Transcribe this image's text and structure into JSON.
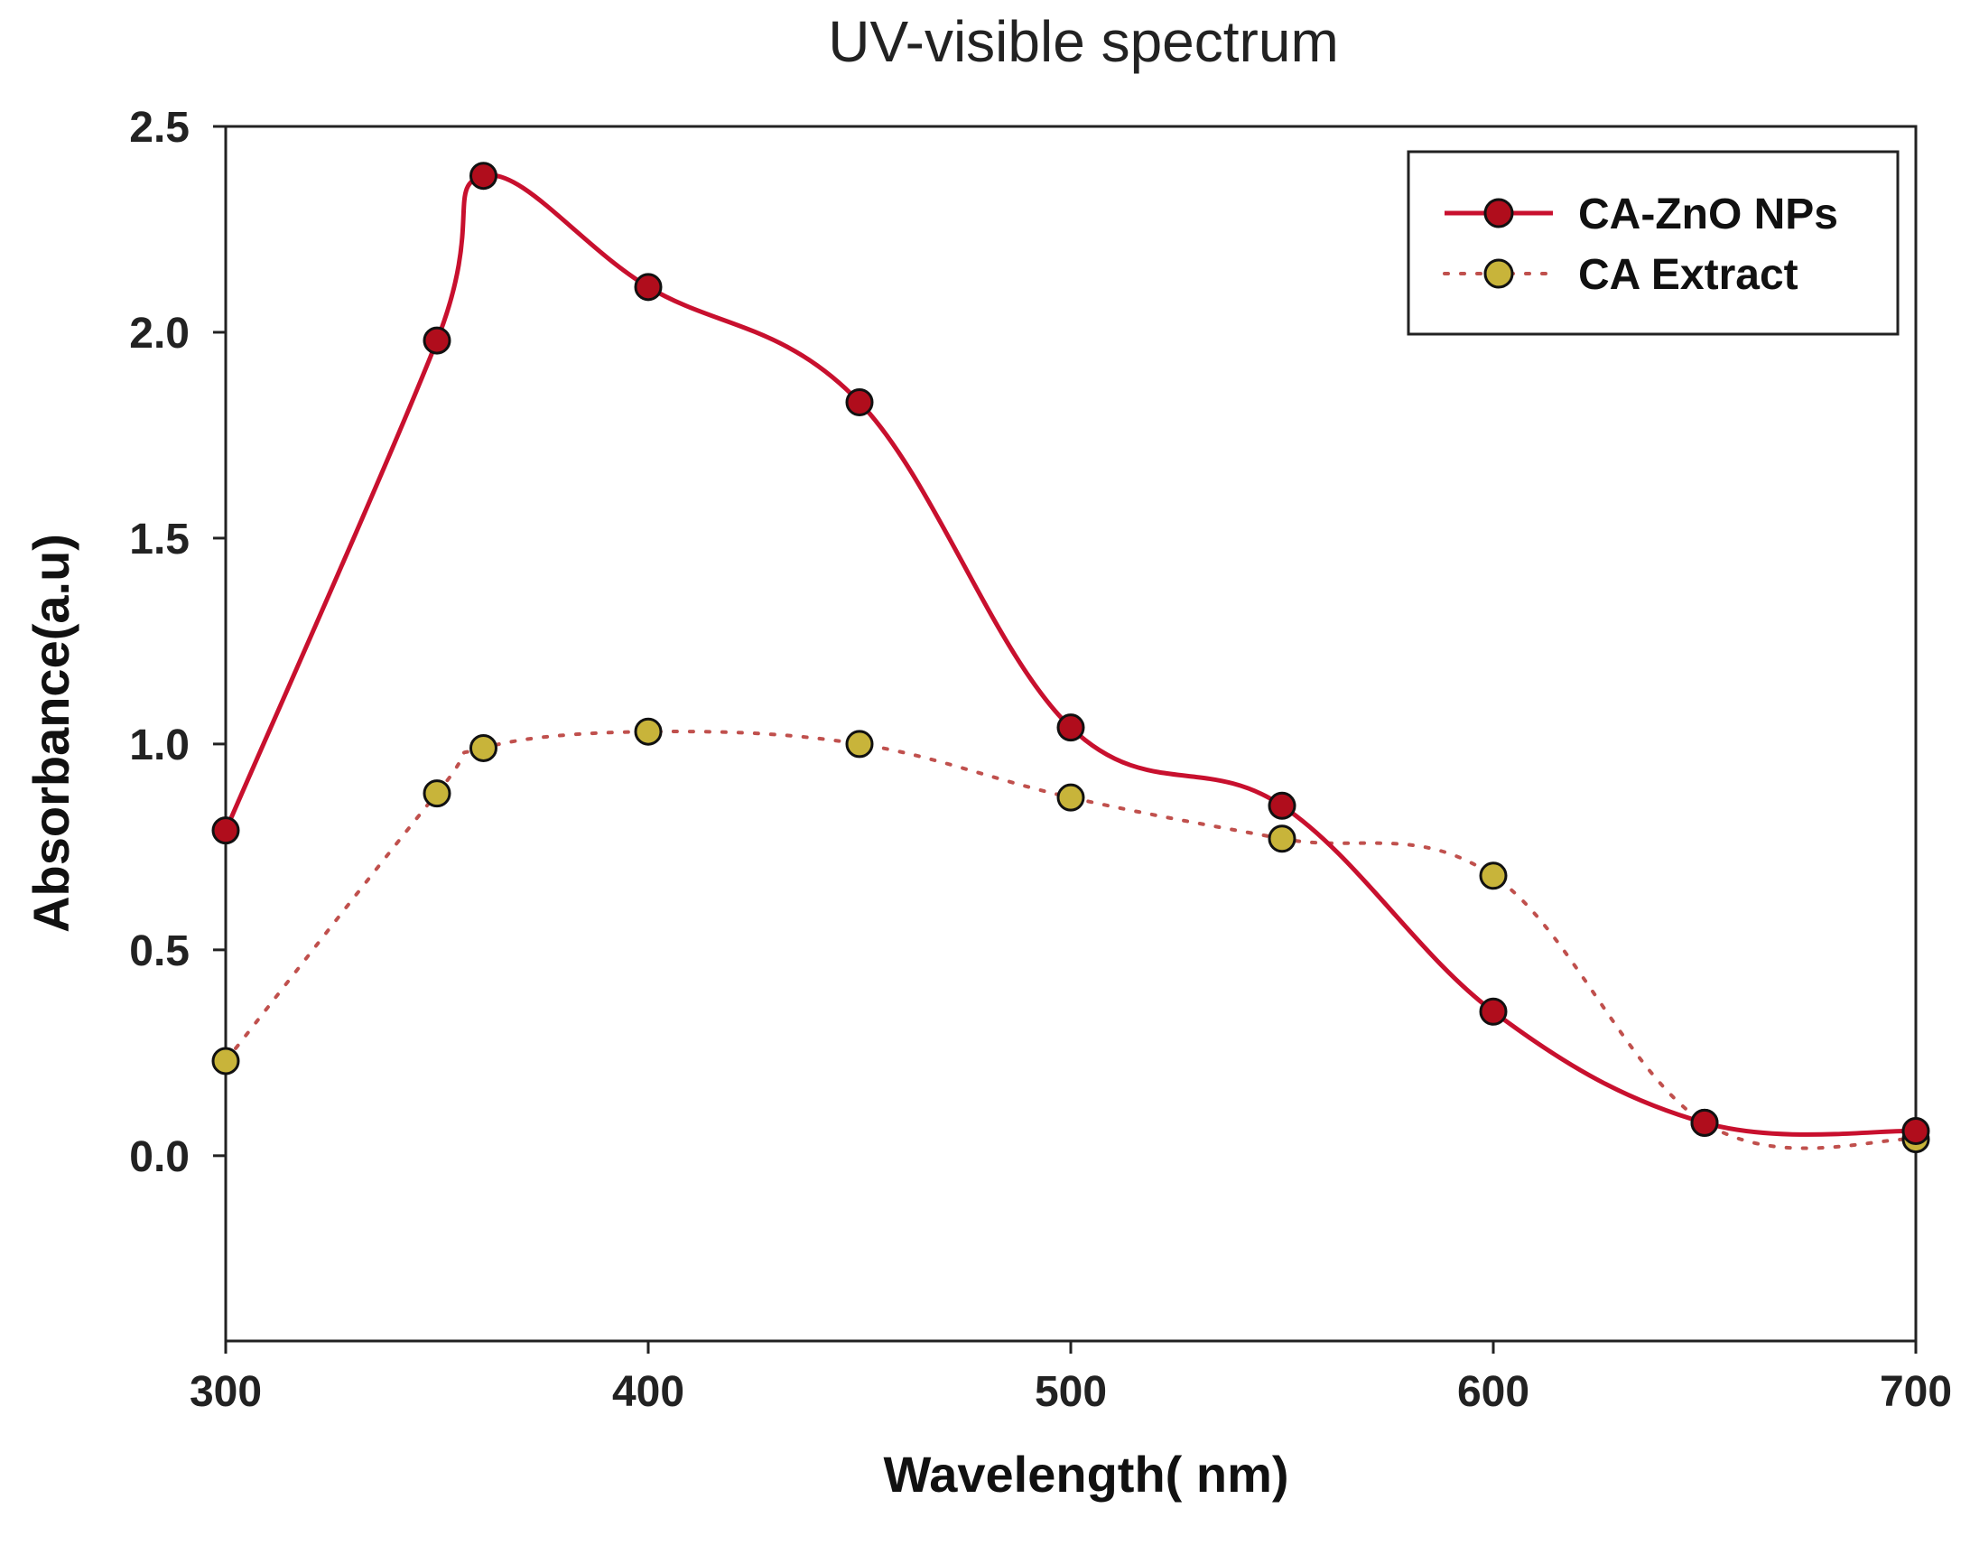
{
  "chart_data": {
    "type": "line",
    "title": "UV-visible spectrum",
    "xlabel": "Wavelength( nm)",
    "ylabel": "Absorbance(a.u)",
    "xlim": [
      300,
      700
    ],
    "ylim": [
      -0.45,
      2.5
    ],
    "xticks": [
      300,
      400,
      500,
      600,
      700
    ],
    "yticks": [
      0.0,
      0.5,
      1.0,
      1.5,
      2.0,
      2.5
    ],
    "xtick_labels": [
      "300",
      "400",
      "500",
      "600",
      "700"
    ],
    "ytick_labels": [
      "0.0",
      "0.5",
      "1.0",
      "1.5",
      "2.0",
      "2.5"
    ],
    "grid": false,
    "legend_position": "top-right",
    "series": [
      {
        "name": "CA-ZnO NPs",
        "line_style": "solid",
        "line_color": "#c8102e",
        "marker_color": "#b00d1c",
        "x": [
          300,
          350,
          361,
          400,
          450,
          500,
          550,
          600,
          650,
          700
        ],
        "y": [
          0.79,
          1.98,
          2.38,
          2.11,
          1.83,
          1.04,
          0.85,
          0.35,
          0.08,
          0.06
        ]
      },
      {
        "name": "CA Extract",
        "line_style": "dotted",
        "line_color": "#c0504d",
        "marker_color": "#c8b43a",
        "x": [
          300,
          350,
          361,
          400,
          450,
          500,
          550,
          600,
          650,
          700
        ],
        "y": [
          0.23,
          0.88,
          0.99,
          1.03,
          1.0,
          0.87,
          0.77,
          0.68,
          0.08,
          0.04
        ]
      }
    ]
  }
}
